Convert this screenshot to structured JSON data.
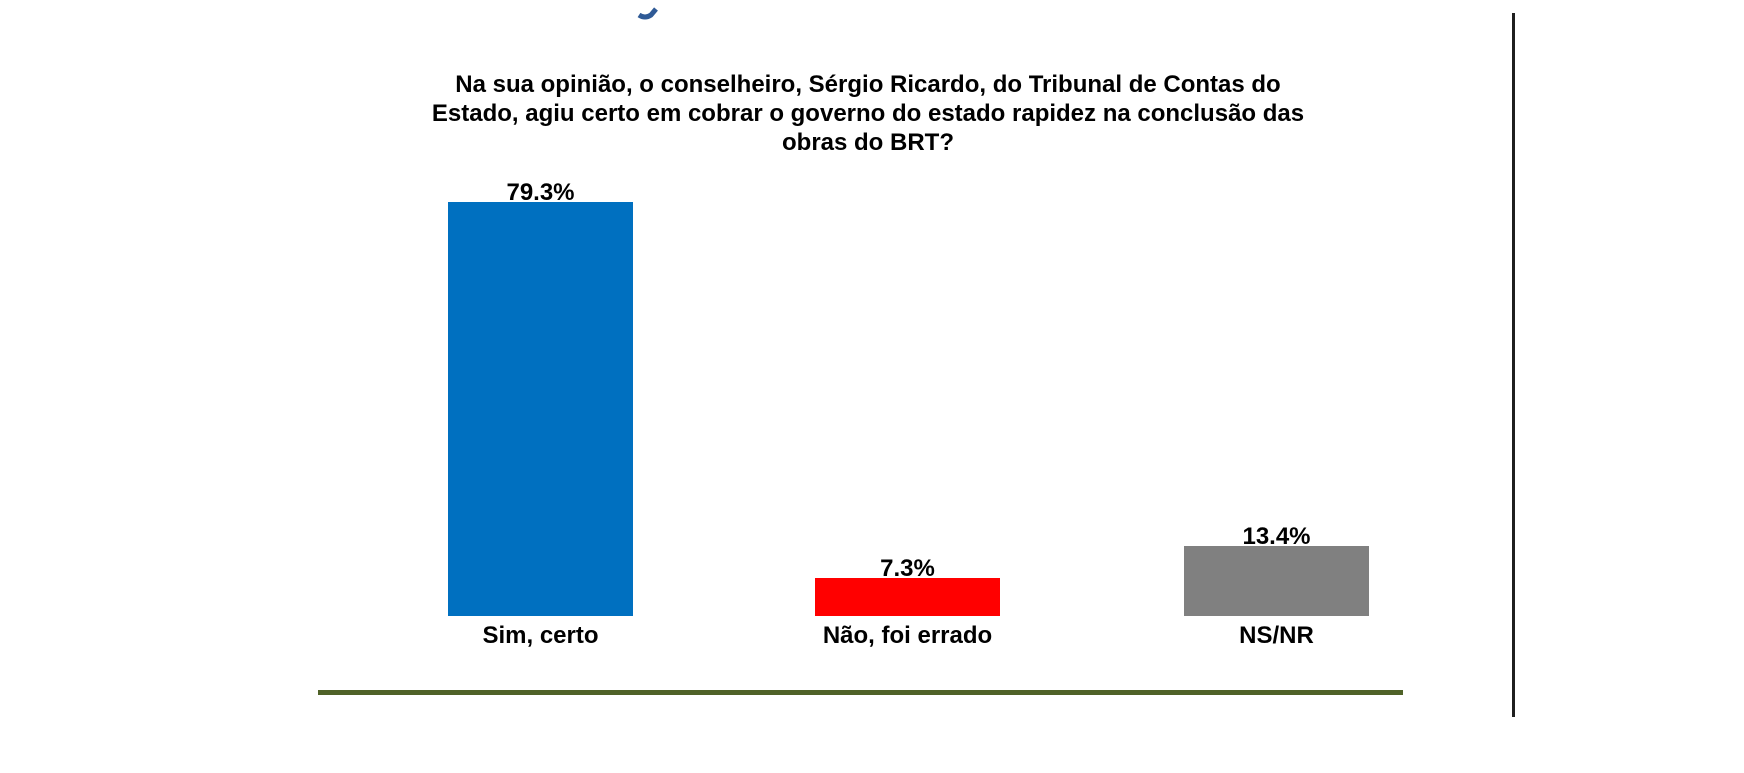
{
  "slide": {
    "background_color": "#FFFFFF"
  },
  "header_fragment": {
    "description": "partially-cropped blue letter fragment at top edge",
    "color": "#2F5A96"
  },
  "chart_data": {
    "type": "bar",
    "title": "Na sua opinião, o conselheiro, Sérgio Ricardo, do Tribunal de Contas do Estado, agiu certo em cobrar o governo do estado rapidez na conclusão das obras do BRT?",
    "categories": [
      "Sim, certo",
      "Não, foi errado",
      "NS/NR"
    ],
    "values": [
      79.3,
      7.3,
      13.4
    ],
    "value_labels": [
      "79.3%",
      "7.3%",
      "13.4%"
    ],
    "colors": [
      "#0070C0",
      "#FF0000",
      "#808080"
    ],
    "unit": "%",
    "xlabel": "",
    "ylabel": "",
    "ylim": [
      0,
      85
    ],
    "grid": false,
    "legend": "none",
    "value_label_position": "outside-end",
    "text_color": "#000000"
  },
  "decorations": {
    "bottom_divider_color": "#4F6228",
    "right_border_color": "#1F1F1F"
  }
}
